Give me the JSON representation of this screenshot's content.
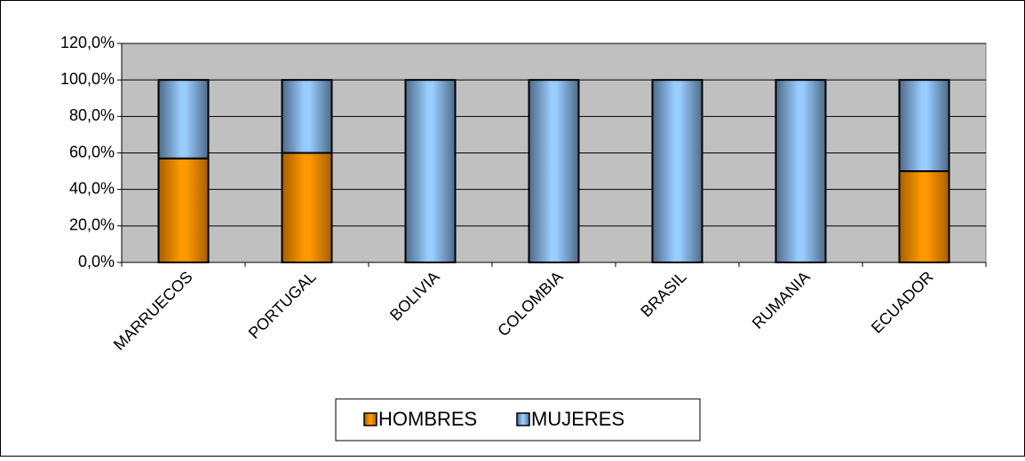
{
  "chart_data": {
    "type": "stacked_bar",
    "categories": [
      "MARRUECOS",
      "PORTUGAL",
      "BOLIVIA",
      "COLOMBIA",
      "BRASIL",
      "RUMANIA",
      "ECUADOR"
    ],
    "series": [
      {
        "name": "HOMBRES",
        "color": "#ff9900",
        "values": [
          57,
          60,
          0,
          0,
          0,
          0,
          50
        ]
      },
      {
        "name": "MUJERES",
        "color": "#99ccff",
        "values": [
          43,
          40,
          100,
          100,
          100,
          100,
          50
        ]
      }
    ],
    "ylim": [
      0,
      120
    ],
    "yticks": [
      {
        "value": 0,
        "label": "0,0%"
      },
      {
        "value": 20,
        "label": "20,0%"
      },
      {
        "value": 40,
        "label": "40,0%"
      },
      {
        "value": 60,
        "label": "60,0%"
      },
      {
        "value": 80,
        "label": "80,0%"
      },
      {
        "value": 100,
        "label": "100,0%"
      },
      {
        "value": 120,
        "label": "120,0%"
      }
    ],
    "grid": true,
    "plot_background": "#c0c0c0",
    "legend": "bottom"
  }
}
